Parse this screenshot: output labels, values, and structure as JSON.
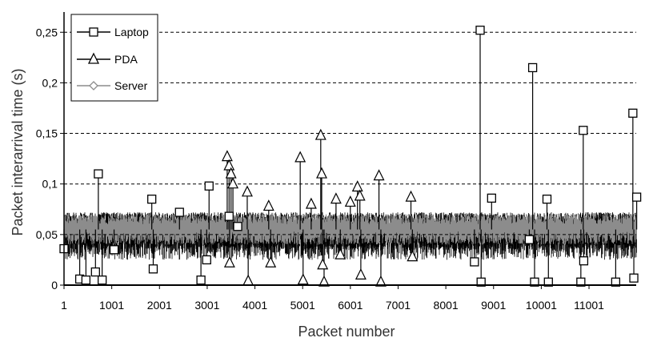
{
  "chart_data": {
    "type": "line",
    "title": "",
    "xlabel": "Packet number",
    "ylabel": "Packet interarrival time (s)",
    "xlim": [
      1,
      12000
    ],
    "ylim": [
      0,
      0.27
    ],
    "x_ticks": [
      "1",
      "1001",
      "2001",
      "3001",
      "4001",
      "5001",
      "6001",
      "7001",
      "8001",
      "9001",
      "10001",
      "11001"
    ],
    "y_ticks": [
      "0",
      "0,05",
      "0,1",
      "0,15",
      "0,2",
      "0,25"
    ],
    "grid": "horizontal dashed",
    "legend": "top-left",
    "colors": {
      "Laptop": "#000000",
      "PDA": "#000000",
      "Server": "#8c8c8c"
    },
    "series": [
      {
        "name": "Laptop",
        "marker": "square",
        "baseline": [
          0.035,
          0.072
        ],
        "values": [
          {
            "x": 1,
            "y": 0.036
          },
          {
            "x": 330,
            "y": 0.006
          },
          {
            "x": 460,
            "y": 0.005
          },
          {
            "x": 660,
            "y": 0.013
          },
          {
            "x": 720,
            "y": 0.11
          },
          {
            "x": 800,
            "y": 0.005
          },
          {
            "x": 1050,
            "y": 0.035
          },
          {
            "x": 1840,
            "y": 0.085
          },
          {
            "x": 1870,
            "y": 0.016
          },
          {
            "x": 2420,
            "y": 0.072
          },
          {
            "x": 2870,
            "y": 0.005
          },
          {
            "x": 2990,
            "y": 0.025
          },
          {
            "x": 3040,
            "y": 0.098
          },
          {
            "x": 3460,
            "y": 0.068
          },
          {
            "x": 3640,
            "y": 0.058
          },
          {
            "x": 8600,
            "y": 0.023
          },
          {
            "x": 8720,
            "y": 0.252
          },
          {
            "x": 8740,
            "y": 0.003
          },
          {
            "x": 8960,
            "y": 0.086
          },
          {
            "x": 9750,
            "y": 0.045
          },
          {
            "x": 9820,
            "y": 0.215
          },
          {
            "x": 9860,
            "y": 0.003
          },
          {
            "x": 10120,
            "y": 0.085
          },
          {
            "x": 10150,
            "y": 0.003
          },
          {
            "x": 10830,
            "y": 0.003
          },
          {
            "x": 10880,
            "y": 0.153
          },
          {
            "x": 10890,
            "y": 0.024
          },
          {
            "x": 11560,
            "y": 0.003
          },
          {
            "x": 11920,
            "y": 0.17
          },
          {
            "x": 11940,
            "y": 0.007
          },
          {
            "x": 12000,
            "y": 0.087
          }
        ]
      },
      {
        "name": "PDA",
        "marker": "triangle",
        "baseline": [
          0.025,
          0.072
        ],
        "values": [
          {
            "x": 3420,
            "y": 0.127
          },
          {
            "x": 3460,
            "y": 0.118
          },
          {
            "x": 3500,
            "y": 0.11
          },
          {
            "x": 3540,
            "y": 0.1
          },
          {
            "x": 3470,
            "y": 0.022
          },
          {
            "x": 3840,
            "y": 0.092
          },
          {
            "x": 3860,
            "y": 0.004
          },
          {
            "x": 4290,
            "y": 0.078
          },
          {
            "x": 4330,
            "y": 0.022
          },
          {
            "x": 4950,
            "y": 0.126
          },
          {
            "x": 5010,
            "y": 0.005
          },
          {
            "x": 5180,
            "y": 0.08
          },
          {
            "x": 5380,
            "y": 0.148
          },
          {
            "x": 5400,
            "y": 0.11
          },
          {
            "x": 5420,
            "y": 0.02
          },
          {
            "x": 5450,
            "y": 0.003
          },
          {
            "x": 5700,
            "y": 0.085
          },
          {
            "x": 5790,
            "y": 0.03
          },
          {
            "x": 6000,
            "y": 0.082
          },
          {
            "x": 6150,
            "y": 0.097
          },
          {
            "x": 6200,
            "y": 0.088
          },
          {
            "x": 6220,
            "y": 0.01
          },
          {
            "x": 6600,
            "y": 0.108
          },
          {
            "x": 6640,
            "y": 0.003
          },
          {
            "x": 7270,
            "y": 0.087
          },
          {
            "x": 7300,
            "y": 0.028
          }
        ]
      },
      {
        "name": "Server",
        "marker": "diamond",
        "baseline": [
          0.04,
          0.07
        ],
        "values": []
      }
    ]
  }
}
